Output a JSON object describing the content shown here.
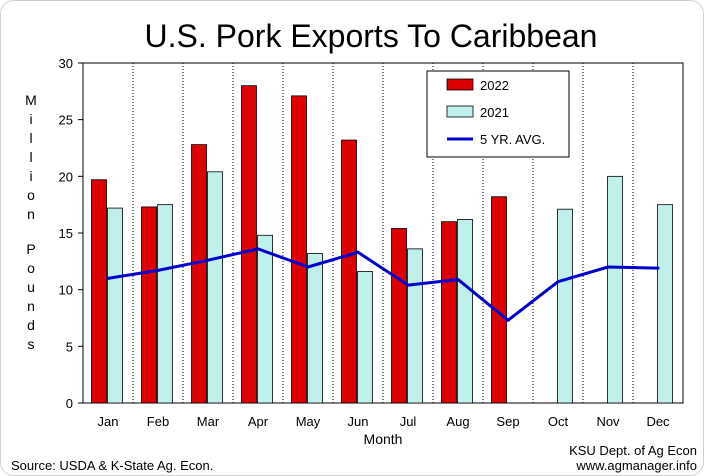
{
  "chart_data": {
    "type": "bar",
    "title": "U.S. Pork Exports To Caribbean",
    "xlabel": "Month",
    "ylabel": "Million Pounds",
    "categories": [
      "Jan",
      "Feb",
      "Mar",
      "Apr",
      "May",
      "Jun",
      "Jul",
      "Aug",
      "Sep",
      "Oct",
      "Nov",
      "Dec"
    ],
    "series": [
      {
        "name": "2022",
        "kind": "bar",
        "color": "#dd0000",
        "values": [
          19.7,
          17.3,
          22.8,
          28.0,
          27.1,
          23.2,
          15.4,
          16.0,
          18.2,
          null,
          null,
          null
        ]
      },
      {
        "name": "2021",
        "kind": "bar",
        "color": "#bff0ec",
        "values": [
          17.2,
          17.5,
          20.4,
          14.8,
          13.2,
          11.6,
          13.6,
          16.2,
          null,
          17.1,
          20.0,
          17.5
        ]
      },
      {
        "name": "5 YR. AVG.",
        "kind": "line",
        "color": "#0000cc",
        "values": [
          11.0,
          11.7,
          12.6,
          13.6,
          12.0,
          13.3,
          10.4,
          10.9,
          7.3,
          10.7,
          12.0,
          11.9
        ]
      }
    ],
    "ylim": [
      0,
      30
    ],
    "yticks": [
      0,
      5,
      10,
      15,
      20,
      25,
      30
    ],
    "grid": "vertical dotted lines between months",
    "legend_position": "top-right"
  },
  "footer": {
    "source": "Source:  USDA & K-State Ag. Econ.",
    "credit_line1": "KSU Dept. of Ag Econ",
    "credit_line2": "www.agmanager.info"
  }
}
